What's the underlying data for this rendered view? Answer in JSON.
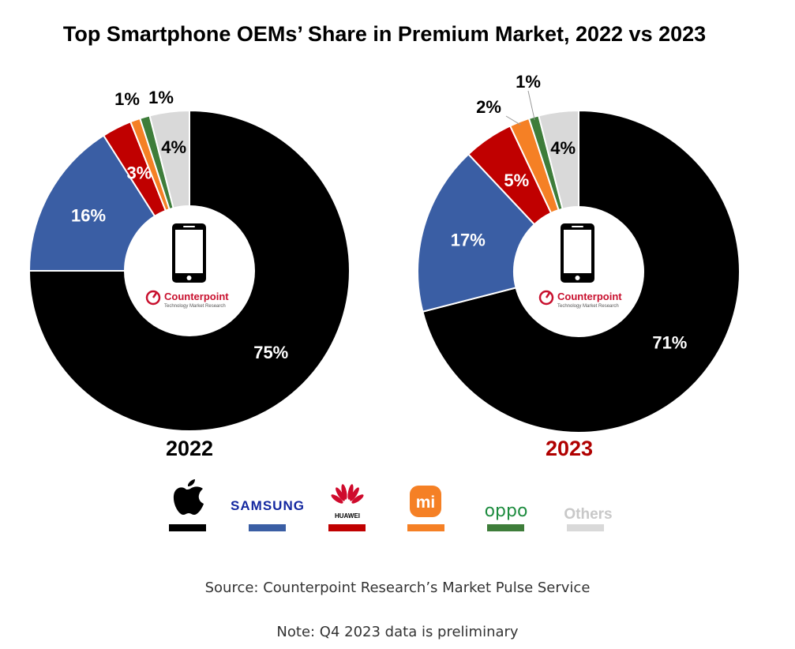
{
  "chart_data": [
    {
      "type": "pie",
      "title": "Top Smartphone OEMs’ Share in Premium Market, 2022 vs 2023",
      "subtitle": "2022",
      "categories": [
        "Apple",
        "Samsung",
        "Huawei",
        "Xiaomi",
        "OPPO",
        "Others"
      ],
      "values": [
        75,
        16,
        3,
        1,
        1,
        4
      ],
      "labels": [
        "75%",
        "16%",
        "3%",
        "1%",
        "1%",
        "4%"
      ]
    },
    {
      "type": "pie",
      "title": "Top Smartphone OEMs’ Share in Premium Market, 2022 vs 2023",
      "subtitle": "2023",
      "categories": [
        "Apple",
        "Samsung",
        "Huawei",
        "Xiaomi",
        "OPPO",
        "Others"
      ],
      "values": [
        71,
        17,
        5,
        2,
        1,
        4
      ],
      "labels": [
        "71%",
        "17%",
        "5%",
        "2%",
        "1%",
        "4%"
      ]
    }
  ],
  "title": "Top Smartphone OEMs’ Share in Premium Market, 2022 vs 2023",
  "years": {
    "left": "2022",
    "right": "2023"
  },
  "colors": {
    "apple": "#000000",
    "samsung": "#3a5ea4",
    "huawei": "#c00000",
    "xiaomi": "#f58025",
    "oppo": "#3e7d3a",
    "others": "#d9d9d9",
    "year2023": "#b00000",
    "counterpoint": "#c8102e"
  },
  "legend": {
    "apple_icon": "apple-logo-icon",
    "samsung": "SAMSUNG",
    "huawei": "HUAWEI",
    "xiaomi": "mi",
    "oppo": "oppo",
    "others": "Others"
  },
  "center_logo": {
    "icon": "smartphone-icon",
    "brand": "Counterpoint",
    "tagline": "Technology Market Research"
  },
  "footer": {
    "source": "Source: Counterpoint Research’s Market Pulse Service",
    "note": "Note: Q4 2023 data is preliminary"
  }
}
